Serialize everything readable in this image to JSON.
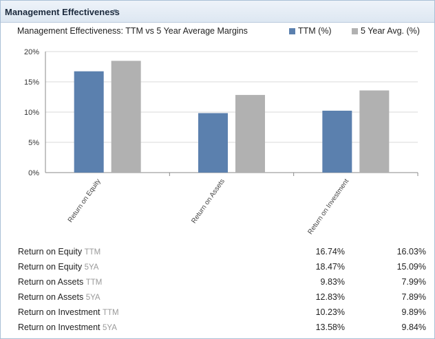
{
  "section": {
    "title": "Management Effectiveness"
  },
  "chart_data": {
    "type": "bar",
    "title": "Management Effectiveness: TTM vs 5 Year Average Margins",
    "categories": [
      "Return on Equity",
      "Return on Assets",
      "Return on Investment"
    ],
    "series": [
      {
        "name": "TTM (%)",
        "values": [
          16.74,
          9.83,
          10.23
        ],
        "color": "#5b80ae"
      },
      {
        "name": "5 Year Avg. (%)",
        "values": [
          18.47,
          12.83,
          13.58
        ],
        "color": "#b1b1b1"
      }
    ],
    "yticks": [
      "0%",
      "5%",
      "10%",
      "15%",
      "20%"
    ],
    "ylim": [
      0,
      20
    ],
    "legend": "top-right",
    "grid": true
  },
  "table": {
    "rows": [
      {
        "label": "Return on Equity",
        "suffix": "TTM",
        "value1": "16.74%",
        "value2": "16.03%"
      },
      {
        "label": "Return on Equity",
        "suffix": "5YA",
        "value1": "18.47%",
        "value2": "15.09%"
      },
      {
        "label": "Return on Assets",
        "suffix": "TTM",
        "value1": "9.83%",
        "value2": "7.99%"
      },
      {
        "label": "Return on Assets",
        "suffix": "5YA",
        "value1": "12.83%",
        "value2": "7.89%"
      },
      {
        "label": "Return on Investment",
        "suffix": "TTM",
        "value1": "10.23%",
        "value2": "9.89%"
      },
      {
        "label": "Return on Investment",
        "suffix": "5YA",
        "value1": "13.58%",
        "value2": "9.84%"
      }
    ]
  }
}
